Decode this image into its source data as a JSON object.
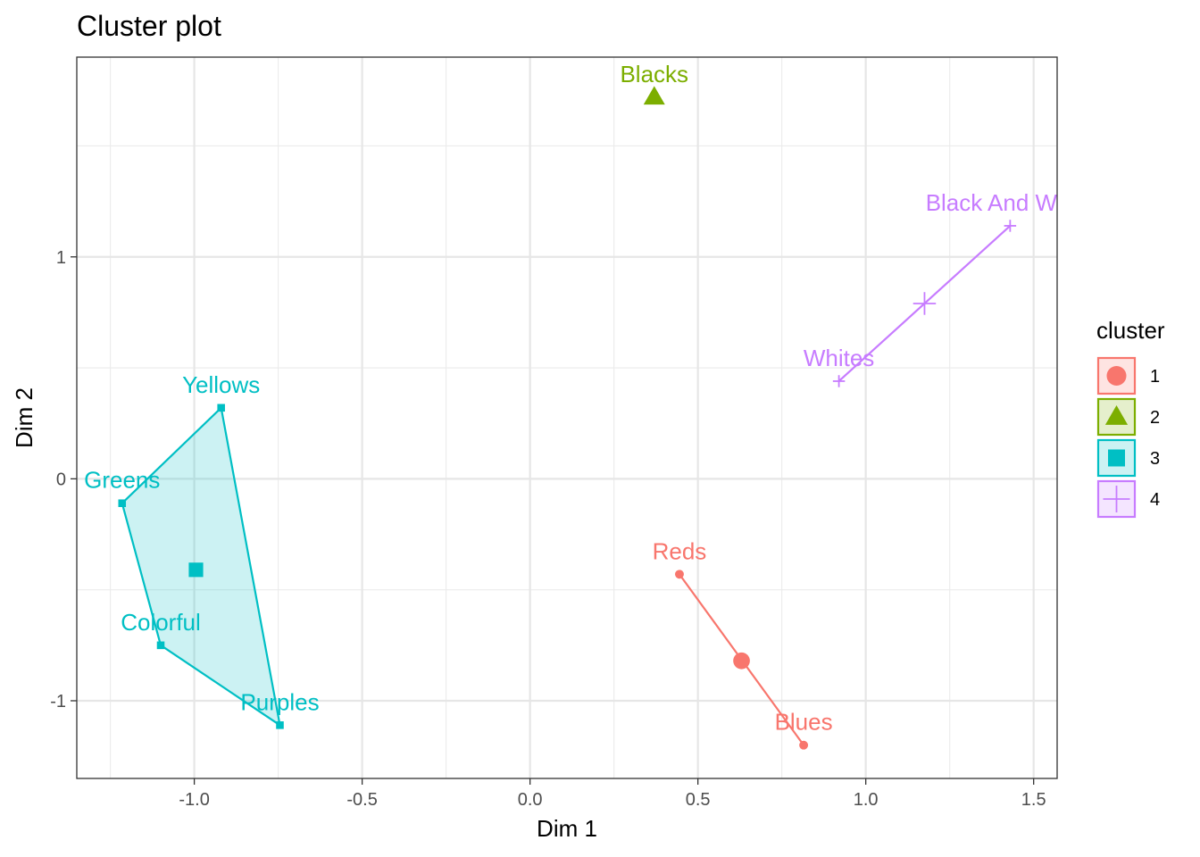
{
  "chart_data": {
    "type": "scatter",
    "title": "Cluster plot",
    "xlabel": "Dim 1",
    "ylabel": "Dim 2",
    "xlim": [
      -1.35,
      1.57
    ],
    "ylim": [
      -1.35,
      1.9
    ],
    "x_ticks": [
      -1.0,
      -0.5,
      0.0,
      0.5,
      1.0,
      1.5
    ],
    "x_tick_labels": [
      "-1.0",
      "-0.5",
      "0.0",
      "0.5",
      "1.0",
      "1.5"
    ],
    "y_ticks": [
      -1,
      0,
      1
    ],
    "y_tick_labels": [
      "-1",
      "0",
      "1"
    ],
    "grid": true,
    "legend": {
      "title": "cluster",
      "placement": "right",
      "entries": [
        {
          "label": "1",
          "shape": "circle",
          "color": "#F8766D"
        },
        {
          "label": "2",
          "shape": "triangle",
          "color": "#7CAE00"
        },
        {
          "label": "3",
          "shape": "square",
          "color": "#00BFC4"
        },
        {
          "label": "4",
          "shape": "plus",
          "color": "#C77CFF"
        }
      ]
    },
    "clusters": [
      {
        "id": "1",
        "color": "#F8766D",
        "shape": "circle",
        "centroid": {
          "x": 0.63,
          "y": -0.82
        },
        "points": [
          {
            "label": "Reds",
            "x": 0.445,
            "y": -0.43
          },
          {
            "label": "Blues",
            "x": 0.815,
            "y": -1.2
          }
        ]
      },
      {
        "id": "2",
        "color": "#7CAE00",
        "shape": "triangle",
        "centroid": {
          "x": 0.37,
          "y": 1.72
        },
        "points": [
          {
            "label": "Blacks",
            "x": 0.37,
            "y": 1.72
          }
        ]
      },
      {
        "id": "3",
        "color": "#00BFC4",
        "shape": "square",
        "centroid": {
          "x": -0.995,
          "y": -0.41
        },
        "points": [
          {
            "label": "Yellows",
            "x": -0.92,
            "y": 0.32
          },
          {
            "label": "Greens",
            "x": -1.215,
            "y": -0.11
          },
          {
            "label": "Colorful",
            "x": -1.1,
            "y": -0.75
          },
          {
            "label": "Purples",
            "x": -0.745,
            "y": -1.11
          }
        ]
      },
      {
        "id": "4",
        "color": "#C77CFF",
        "shape": "plus",
        "centroid": {
          "x": 1.175,
          "y": 0.79
        },
        "points": [
          {
            "label": "Whites",
            "x": 0.92,
            "y": 0.44
          },
          {
            "label": "Black And White",
            "x": 1.43,
            "y": 1.14
          }
        ]
      }
    ]
  }
}
